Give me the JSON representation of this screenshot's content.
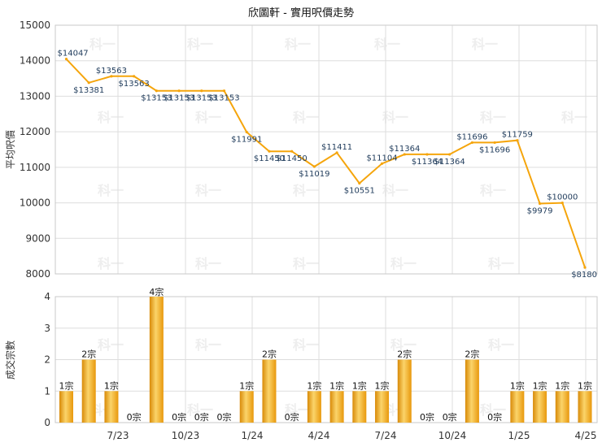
{
  "chart_data": [
    {
      "type": "line",
      "title": "欣圖軒 - 實用呎價走勢",
      "ylabel": "平均呎價",
      "ylim": [
        8000,
        15000
      ],
      "yticks": [
        8000,
        9000,
        10000,
        11000,
        12000,
        13000,
        14000,
        15000
      ],
      "xticks": [
        "7/23",
        "10/23",
        "1/24",
        "4/24",
        "7/24",
        "10/24",
        "1/25",
        "4/25"
      ],
      "grid": true,
      "color": "#f5a50c",
      "points": [
        {
          "value": 14047,
          "label": "$14047"
        },
        {
          "value": 13381,
          "label": "$13381"
        },
        {
          "value": 13563,
          "label": "$13563"
        },
        {
          "value": 13563,
          "label": "$13563"
        },
        {
          "value": 13153,
          "label": "$13153"
        },
        {
          "value": 13153,
          "label": "$13153"
        },
        {
          "value": 13153,
          "label": "$13153"
        },
        {
          "value": 13153,
          "label": "$13153"
        },
        {
          "value": 11991,
          "label": "$11991"
        },
        {
          "value": 11450,
          "label": "$11450"
        },
        {
          "value": 11450,
          "label": "$11450"
        },
        {
          "value": 11019,
          "label": "$11019"
        },
        {
          "value": 11411,
          "label": "$11411"
        },
        {
          "value": 10551,
          "label": "$10551"
        },
        {
          "value": 11104,
          "label": "$11104"
        },
        {
          "value": 11364,
          "label": "$11364"
        },
        {
          "value": 11364,
          "label": "$11364"
        },
        {
          "value": 11364,
          "label": "$11364"
        },
        {
          "value": 11696,
          "label": "$11696"
        },
        {
          "value": 11696,
          "label": "$11696"
        },
        {
          "value": 11759,
          "label": "$11759"
        },
        {
          "value": 9979,
          "label": "$9979"
        },
        {
          "value": 10000,
          "label": "$10000"
        },
        {
          "value": 8180,
          "label": "$8180"
        }
      ]
    },
    {
      "type": "bar",
      "ylabel": "成交宗數",
      "ylim": [
        0,
        4
      ],
      "yticks": [
        0,
        1,
        2,
        3,
        4
      ],
      "color": "#f2b02e",
      "values": [
        1,
        2,
        1,
        0,
        4,
        0,
        0,
        0,
        1,
        2,
        0,
        1,
        1,
        1,
        1,
        2,
        0,
        0,
        2,
        0,
        1,
        1,
        1,
        1
      ],
      "labels": [
        "1宗",
        "2宗",
        "1宗",
        "0宗",
        "4宗",
        "0宗",
        "0宗",
        "0宗",
        "1宗",
        "2宗",
        "0宗",
        "1宗",
        "1宗",
        "1宗",
        "1宗",
        "2宗",
        "0宗",
        "0宗",
        "2宗",
        "0宗",
        "1宗",
        "1宗",
        "1宗",
        "1宗"
      ]
    }
  ],
  "watermark": "科一"
}
